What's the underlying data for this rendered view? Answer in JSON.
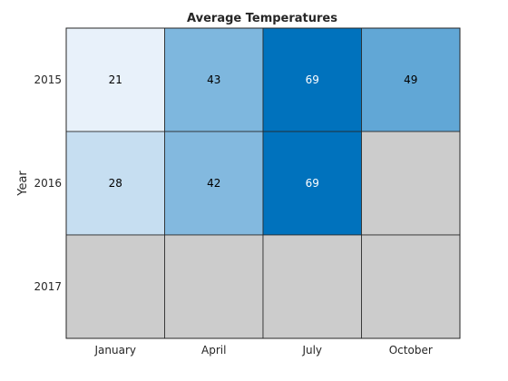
{
  "chart_data": {
    "type": "heatmap",
    "title": "Average Temperatures",
    "xlabel": "",
    "ylabel": "Year",
    "x_categories": [
      "January",
      "April",
      "July",
      "October"
    ],
    "y_categories": [
      "2015",
      "2016",
      "2017"
    ],
    "values": [
      [
        21,
        43,
        69,
        49
      ],
      [
        28,
        42,
        69,
        null
      ],
      [
        null,
        null,
        null,
        null
      ]
    ],
    "missing_color": "#cccccc",
    "colormap": {
      "low_color": "#e8f1fa",
      "high_color": "#0072bd",
      "min": 21,
      "max": 69
    },
    "grid_color": "#262626"
  }
}
